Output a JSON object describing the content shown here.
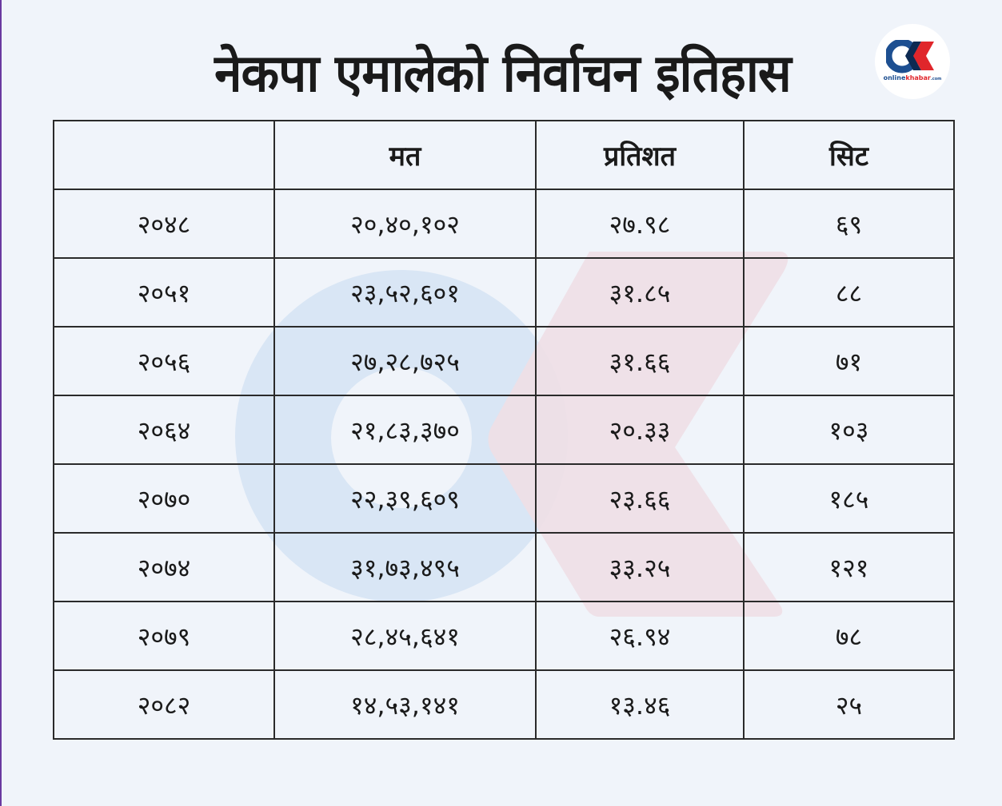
{
  "title": "नेकपा एमालेको निर्वाचन इतिहास",
  "logo": {
    "text_primary": "online",
    "text_accent": "khabar",
    "suffix": ".com"
  },
  "table": {
    "headers": [
      "",
      "मत",
      "प्रतिशत",
      "सिट"
    ],
    "rows": [
      [
        "२०४८",
        "२०,४०,१०२",
        "२७.९८",
        "६९"
      ],
      [
        "२०५१",
        "२३,५२,६०१",
        "३१.८५",
        "८८"
      ],
      [
        "२०५६",
        "२७,२८,७२५",
        "३१.६६",
        "७१"
      ],
      [
        "२०६४",
        "२१,८३,३७०",
        "२०.३३",
        "१०३"
      ],
      [
        "२०७०",
        "२२,३९,६०९",
        "२३.६६",
        "१८५"
      ],
      [
        "२०७४",
        "३१,७३,४९५",
        "३३.२५",
        "१२१"
      ],
      [
        "२०७९",
        "२८,४५,६४१",
        "२६.९४",
        "७८"
      ],
      [
        "२०८२",
        "१४,५३,१४१",
        "१३.४६",
        "२५"
      ]
    ]
  },
  "colors": {
    "blue": "#1d4f91",
    "red": "#e0262b",
    "background": "#f0f4fa"
  }
}
